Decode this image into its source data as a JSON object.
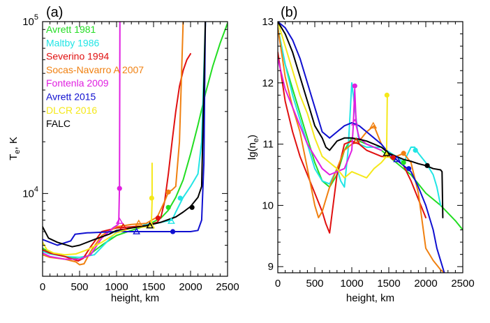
{
  "colors": {
    "Avrett 1981": "#22dd22",
    "Maltby 1986": "#22e5e5",
    "Severino 1994": "#e01010",
    "Socas-Navarro A 2007": "#f08010",
    "Fontenla 2009": "#e020e0",
    "Avrett 2015": "#1010d0",
    "DLCR 2016": "#f5e81a",
    "FALC": "#000000"
  },
  "chart_data": [
    {
      "type": "line",
      "panel_label": "(a)",
      "xlabel": "height, km",
      "ylabel": "T",
      "ylabel_sub": "e",
      "ylabel_suffix": ", K",
      "xlim": [
        0,
        2500
      ],
      "ylim": [
        3300,
        100000
      ],
      "yscale": "log",
      "xticks": [
        0,
        500,
        1000,
        1500,
        2000,
        2500
      ],
      "xtick_labels": [
        "0",
        "500",
        "1000",
        "1500",
        "2000",
        "2500"
      ],
      "yticks": [
        10000,
        100000
      ],
      "ytick_base": "10",
      "ytick_exponents": [
        "4",
        "5"
      ],
      "legend": {
        "placement": "top-left",
        "entries": [
          "Avrett 1981",
          "Maltby 1986",
          "Severino 1994",
          "Socas-Navarro A 2007",
          "Fontenla 2009",
          "Avrett 2015",
          "DLCR 2016",
          "FALC"
        ]
      },
      "series": [
        {
          "name": "Avrett 1981",
          "x": [
            0,
            100,
            300,
            500,
            600,
            800,
            1000,
            1200,
            1400,
            1600,
            1700,
            1800,
            1900,
            2000,
            2100,
            2200,
            2300,
            2400,
            2500
          ],
          "y": [
            4800,
            4550,
            4300,
            4150,
            4300,
            5000,
            5700,
            6100,
            6500,
            7200,
            8000,
            9500,
            12000,
            17000,
            25000,
            38000,
            55000,
            75000,
            98000
          ],
          "markers": [
            {
              "x": 1700,
              "y": 8300,
              "shape": "circle"
            }
          ]
        },
        {
          "name": "Maltby 1986",
          "x": [
            0,
            100,
            300,
            500,
            700,
            900,
            1000,
            1200,
            1400,
            1600,
            1750,
            1800,
            1900,
            2000,
            2100,
            2150,
            2200
          ],
          "y": [
            4600,
            4450,
            4300,
            4250,
            4400,
            5400,
            6000,
            6300,
            6600,
            6800,
            7000,
            7800,
            9500,
            11000,
            13000,
            20000,
            98000
          ],
          "markers": [
            {
              "x": 1860,
              "y": 9400,
              "shape": "circle"
            },
            {
              "x": 1740,
              "y": 6900,
              "shape": "triangle"
            }
          ]
        },
        {
          "name": "Severino 1994",
          "x": [
            0,
            100,
            300,
            480,
            550,
            650,
            800,
            1000,
            1200,
            1400,
            1550,
            1600,
            1650,
            1700,
            1750,
            1800,
            1850,
            1900,
            1950,
            2000
          ],
          "y": [
            4700,
            4500,
            4300,
            4050,
            4200,
            4900,
            6000,
            6300,
            6400,
            6500,
            6800,
            7300,
            9000,
            13000,
            20000,
            30000,
            42000,
            52000,
            60000,
            65000
          ],
          "markers": [
            {
              "x": 1560,
              "y": 7200,
              "shape": "circle"
            },
            {
              "x": 1090,
              "y": 6400,
              "shape": "triangle"
            }
          ]
        },
        {
          "name": "Socas-Navarro A 2007",
          "x": [
            0,
            100,
            300,
            450,
            500,
            560,
            650,
            800,
            1000,
            1200,
            1400,
            1550,
            1650,
            1700,
            1750,
            1800,
            1850,
            1900
          ],
          "y": [
            4400,
            4250,
            4150,
            4000,
            3850,
            3900,
            4600,
            5700,
            6400,
            6600,
            6700,
            7300,
            9000,
            10200,
            10500,
            11000,
            20000,
            100000
          ],
          "markers": [
            {
              "x": 1700,
              "y": 10200,
              "shape": "circle"
            },
            {
              "x": 1300,
              "y": 6700,
              "shape": "triangle"
            }
          ]
        },
        {
          "name": "Fontenla 2009",
          "x": [
            0,
            100,
            300,
            500,
            650,
            800,
            950,
            1020,
            1030,
            1040,
            1045
          ],
          "y": [
            4500,
            4300,
            4150,
            4150,
            4400,
            5500,
            6300,
            6600,
            7000,
            11000,
            100000
          ],
          "markers": [
            {
              "x": 1040,
              "y": 10700,
              "shape": "circle"
            },
            {
              "x": 1040,
              "y": 6900,
              "shape": "triangle"
            }
          ]
        },
        {
          "name": "Avrett 2015",
          "x": [
            0,
            200,
            380,
            440,
            600,
            800,
            1000,
            1200,
            1400,
            1600,
            1800,
            2000,
            2100,
            2150,
            2180,
            2200
          ],
          "y": [
            5400,
            5000,
            5300,
            5800,
            5900,
            5950,
            6000,
            6000,
            6000,
            6000,
            6000,
            6000,
            6100,
            7000,
            15000,
            100000
          ],
          "markers": [
            {
              "x": 1760,
              "y": 6000,
              "shape": "circle"
            },
            {
              "x": 1270,
              "y": 6000,
              "shape": "triangle"
            }
          ]
        },
        {
          "name": "DLCR 2016",
          "x": [
            0,
            60,
            150,
            300,
            450,
            600,
            800,
            1000,
            1200,
            1400,
            1470,
            1480,
            1480
          ],
          "y": [
            5200,
            4700,
            4500,
            4400,
            4450,
            4700,
            5200,
            5900,
            6300,
            6400,
            6500,
            9000,
            15000
          ],
          "markers": [
            {
              "x": 1475,
              "y": 9400,
              "shape": "circle"
            },
            {
              "x": 1470,
              "y": 6500,
              "shape": "triangle"
            }
          ]
        },
        {
          "name": "FALC",
          "x": [
            0,
            80,
            200,
            400,
            500,
            700,
            900,
            1000,
            1200,
            1400,
            1600,
            1800,
            1900,
            2000,
            2100,
            2150,
            2200
          ],
          "y": [
            6400,
            5500,
            5200,
            4900,
            5000,
            5400,
            5800,
            6100,
            6300,
            6500,
            6800,
            7300,
            7800,
            8400,
            9500,
            11000,
            100000
          ],
          "markers": [
            {
              "x": 2020,
              "y": 8300,
              "shape": "circle"
            },
            {
              "x": 1450,
              "y": 6500,
              "shape": "triangle"
            }
          ]
        }
      ]
    },
    {
      "type": "line",
      "panel_label": "(b)",
      "xlabel": "height, km",
      "ylabel": "lg(n",
      "ylabel_sub": "e",
      "ylabel_suffix": ")",
      "xlim": [
        0,
        2500
      ],
      "ylim": [
        8.9,
        13.0
      ],
      "yscale": "linear",
      "xticks": [
        0,
        500,
        1000,
        1500,
        2000,
        2500
      ],
      "xtick_labels": [
        "0",
        "500",
        "1000",
        "1500",
        "2000",
        "2500"
      ],
      "yticks": [
        9,
        10,
        11,
        12,
        13
      ],
      "ytick_labels": [
        "9",
        "10",
        "11",
        "12",
        "13"
      ],
      "series": [
        {
          "name": "Avrett 1981",
          "x": [
            0,
            100,
            200,
            300,
            400,
            500,
            600,
            700,
            800,
            900,
            1000,
            1200,
            1400,
            1600,
            1800,
            2000,
            2200,
            2400,
            2500
          ],
          "y": [
            12.9,
            12.3,
            11.9,
            11.5,
            11.1,
            10.7,
            10.4,
            10.3,
            10.5,
            10.9,
            11.1,
            11.0,
            10.9,
            10.7,
            10.5,
            10.2,
            10.0,
            9.75,
            9.6
          ],
          "markers": [
            {
              "x": 1700,
              "y": 10.7,
              "shape": "circle"
            }
          ]
        },
        {
          "name": "Maltby 1986",
          "x": [
            0,
            100,
            200,
            300,
            400,
            500,
            600,
            700,
            800,
            850,
            900,
            950,
            1000,
            1100,
            1200,
            1400,
            1600,
            1700,
            1800,
            1850,
            1900,
            2000,
            2100,
            2150,
            2200
          ],
          "y": [
            12.9,
            12.3,
            11.8,
            11.4,
            11.0,
            10.6,
            10.4,
            10.35,
            10.6,
            10.4,
            10.3,
            10.9,
            12.0,
            11.0,
            10.95,
            10.95,
            10.8,
            10.7,
            10.95,
            10.95,
            10.85,
            10.7,
            10.5,
            10.3,
            10.0
          ],
          "markers": [
            {
              "x": 1860,
              "y": 10.9,
              "shape": "circle"
            }
          ]
        },
        {
          "name": "Severino 1994",
          "x": [
            0,
            100,
            200,
            300,
            400,
            500,
            600,
            650,
            700,
            800,
            900,
            1000,
            1100,
            1200,
            1300,
            1400,
            1500,
            1550,
            1600,
            1700,
            1800,
            1900,
            2000
          ],
          "y": [
            12.5,
            11.7,
            11.2,
            10.8,
            10.5,
            10.2,
            9.9,
            9.7,
            9.55,
            10.5,
            11.0,
            11.05,
            11.0,
            10.9,
            10.85,
            10.8,
            10.8,
            10.78,
            10.75,
            10.65,
            10.4,
            10.1,
            9.8
          ],
          "markers": [
            {
              "x": 1560,
              "y": 10.78,
              "shape": "circle"
            },
            {
              "x": 1060,
              "y": 11.05,
              "shape": "triangle"
            }
          ]
        },
        {
          "name": "Socas-Navarro A 2007",
          "x": [
            0,
            100,
            200,
            300,
            400,
            500,
            550,
            600,
            700,
            800,
            900,
            1000,
            1100,
            1200,
            1300,
            1400,
            1500,
            1600,
            1700,
            1800,
            1900,
            2000,
            2100,
            2200,
            2250
          ],
          "y": [
            12.9,
            12.1,
            11.6,
            11.2,
            10.6,
            10.0,
            9.8,
            9.9,
            10.3,
            10.6,
            10.9,
            11.0,
            11.05,
            11.2,
            11.3,
            11.0,
            10.85,
            10.8,
            10.85,
            10.7,
            10.2,
            9.3,
            9.1,
            8.95,
            8.9
          ],
          "markers": [
            {
              "x": 1700,
              "y": 10.85,
              "shape": "circle"
            },
            {
              "x": 1290,
              "y": 11.3,
              "shape": "triangle"
            }
          ]
        },
        {
          "name": "Fontenla 2009",
          "x": [
            0,
            100,
            200,
            300,
            400,
            500,
            600,
            700,
            800,
            900,
            1000,
            1020,
            1040,
            1060,
            1100,
            1200,
            1300,
            1400
          ],
          "y": [
            12.4,
            11.9,
            11.6,
            11.3,
            11.0,
            10.8,
            10.6,
            10.5,
            10.55,
            10.6,
            10.9,
            11.3,
            11.9,
            11.3,
            11.1,
            11.0,
            10.95,
            10.9
          ],
          "markers": [
            {
              "x": 1040,
              "y": 11.95,
              "shape": "circle"
            },
            {
              "x": 1040,
              "y": 11.35,
              "shape": "triangle"
            }
          ]
        },
        {
          "name": "Avrett 2015",
          "x": [
            0,
            100,
            200,
            300,
            400,
            500,
            600,
            700,
            800,
            900,
            1000,
            1100,
            1200,
            1300,
            1400,
            1500,
            1600,
            1700,
            1800,
            1900,
            2000,
            2100,
            2150,
            2200,
            2250
          ],
          "y": [
            13.0,
            12.9,
            12.7,
            12.4,
            12.0,
            11.6,
            11.2,
            11.1,
            11.2,
            11.3,
            11.35,
            11.3,
            11.2,
            11.1,
            11.0,
            10.85,
            10.75,
            10.65,
            10.55,
            10.3,
            10.0,
            9.6,
            9.3,
            9.1,
            8.9
          ],
          "markers": [
            {
              "x": 1770,
              "y": 10.6,
              "shape": "circle"
            },
            {
              "x": 1610,
              "y": 10.75,
              "shape": "triangle"
            }
          ]
        },
        {
          "name": "DLCR 2016",
          "x": [
            0,
            100,
            200,
            300,
            400,
            500,
            600,
            700,
            800,
            900,
            1000,
            1100,
            1200,
            1300,
            1400,
            1470,
            1480
          ],
          "y": [
            13.0,
            12.6,
            12.2,
            11.8,
            11.5,
            11.1,
            10.8,
            10.7,
            10.6,
            10.45,
            10.55,
            10.5,
            10.45,
            10.6,
            10.7,
            10.8,
            11.8
          ],
          "markers": [
            {
              "x": 1475,
              "y": 11.8,
              "shape": "circle"
            },
            {
              "x": 1470,
              "y": 10.82,
              "shape": "triangle"
            }
          ]
        },
        {
          "name": "FALC",
          "x": [
            0,
            100,
            200,
            300,
            400,
            500,
            600,
            650,
            700,
            800,
            900,
            1000,
            1100,
            1200,
            1300,
            1400,
            1500,
            1600,
            1700,
            1800,
            1900,
            2000,
            2100,
            2200,
            2220,
            2230
          ],
          "y": [
            13.0,
            12.8,
            12.5,
            12.1,
            11.7,
            11.3,
            11.1,
            10.95,
            10.9,
            11.05,
            11.1,
            11.1,
            11.08,
            11.05,
            11.0,
            10.95,
            10.85,
            10.8,
            10.75,
            10.72,
            10.68,
            10.65,
            10.6,
            10.58,
            10.55,
            9.8
          ],
          "markers": [
            {
              "x": 2020,
              "y": 10.65,
              "shape": "circle"
            },
            {
              "x": 1470,
              "y": 10.85,
              "shape": "triangle"
            }
          ]
        }
      ]
    }
  ]
}
